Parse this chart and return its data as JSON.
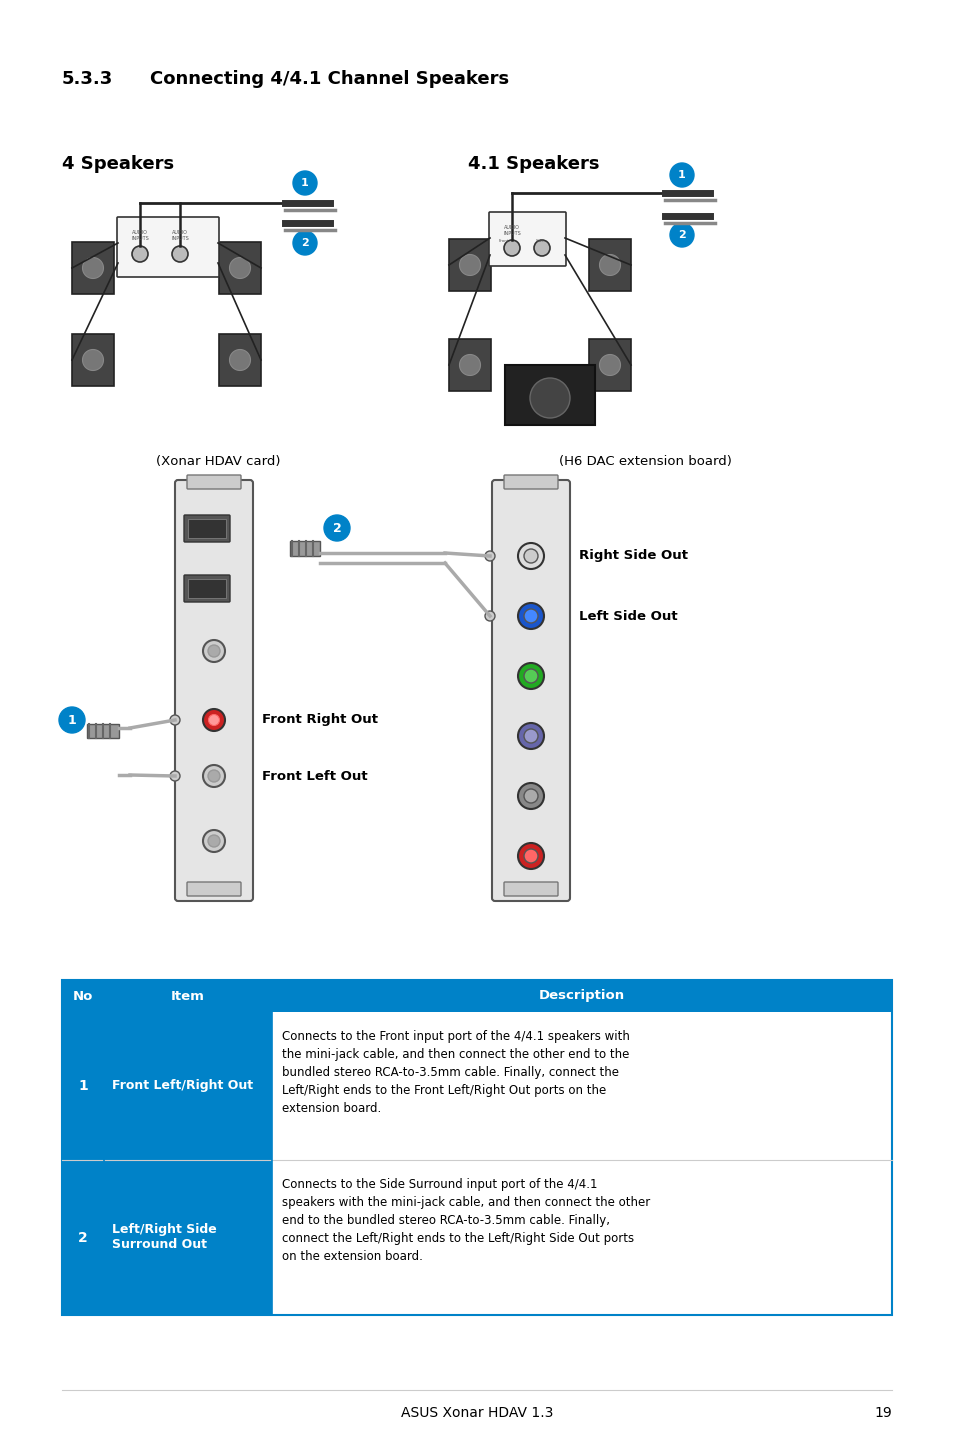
{
  "title_section": "5.3.3",
  "title_text": "Connecting 4/4.1 Channel Speakers",
  "bg_color": "#ffffff",
  "label_4speakers": "4 Speakers",
  "label_41speakers": "4.1 Speakers",
  "card_label": "(Xonar HDAV card)",
  "board_label": "(H6 DAC extension board)",
  "right_side_out": "Right Side Out",
  "left_side_out": "Left Side Out",
  "front_right_out": "Front Right Out",
  "front_left_out": "Front Left Out",
  "table_header_bg": "#0082c8",
  "table_header_color": "#ffffff",
  "table_item_bg": "#0082c8",
  "table_item_color": "#ffffff",
  "table_border_color": "#0082c8",
  "table_col_no": "No",
  "table_col_item": "Item",
  "table_col_desc": "Description",
  "table_row1_no": "1",
  "table_row1_item": "Front Left/Right Out",
  "table_row1_desc": "Connects to the Front input port of the 4/4.1 speakers with\nthe mini-jack cable, and then connect the other end to the\nbundled stereo RCA-to-3.5mm cable. Finally, connect the\nLeft/Right ends to the Front Left/Right Out ports on the\nextension board.",
  "table_row2_no": "2",
  "table_row2_item": "Left/Right Side\nSurround Out",
  "table_row2_desc": "Connects to the Side Surround input port of the 4/4.1\nspeakers with the mini-jack cable, and then connect the other\nend to the bundled stereo RCA-to-3.5mm cable. Finally,\nconnect the Left/Right ends to the Left/Right Side Out ports\non the extension board.",
  "footer_text": "ASUS Xonar HDAV 1.3",
  "footer_page": "19",
  "circle_blue": "#0082c8",
  "port_red": "#cc2222",
  "port_blue": "#1a56cc",
  "port_green": "#22aa22",
  "port_purple": "#6666aa",
  "port_gray": "#aaaaaa"
}
